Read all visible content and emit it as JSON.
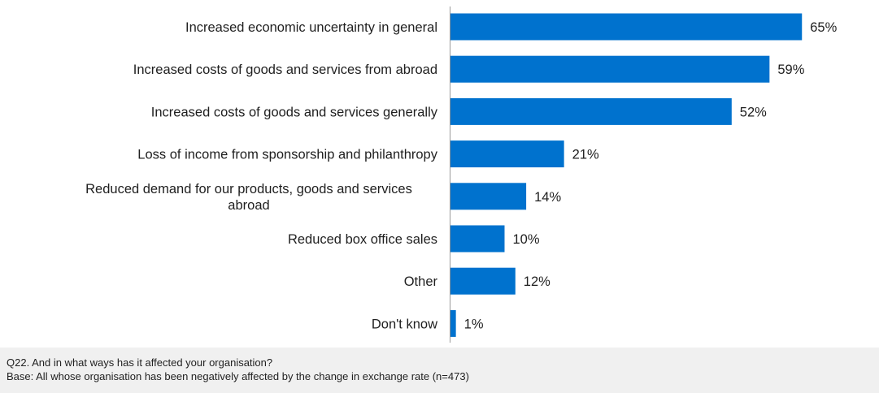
{
  "chart_data": {
    "type": "bar",
    "orientation": "horizontal",
    "categories": [
      "Increased economic uncertainty in general",
      "Increased costs of goods and services from abroad",
      "Increased costs of goods and services generally",
      "Loss of income from sponsorship and philanthropy",
      "Reduced demand for our products, goods and services abroad",
      "Reduced box office sales",
      "Other",
      "Don't know"
    ],
    "values": [
      65,
      59,
      52,
      21,
      14,
      10,
      12,
      1
    ],
    "value_suffix": "%",
    "bar_color": "#0072CE",
    "xlim": [
      0,
      80
    ],
    "grid": false,
    "legend": "none"
  },
  "footer": {
    "question": "Q22. And in what ways has it affected your organisation?",
    "base": "Base: All whose organisation has been negatively affected by the change in exchange rate (n=473)"
  }
}
